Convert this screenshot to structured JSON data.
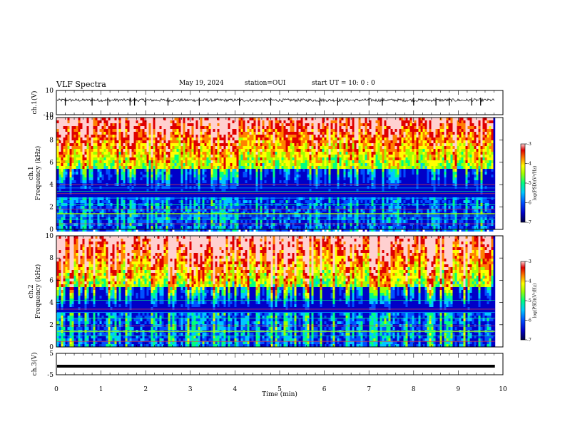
{
  "header": {
    "title": "VLF Spectra",
    "date": "May 19, 2024",
    "station": "station=OUI",
    "start_ut": "start  UT =   10: 0  : 0"
  },
  "colors": {
    "colormap": [
      "#000040",
      "#0000c8",
      "#0050ff",
      "#00c8ff",
      "#00ff80",
      "#a0ff00",
      "#ffff00",
      "#ff8000",
      "#e00000",
      "#ffd0d0"
    ],
    "waveform": "#000000",
    "frame": "#000000"
  },
  "chart_data": [
    {
      "id": "ch1-waveform",
      "type": "line",
      "ylabel": "ch.1(V)",
      "ylim": [
        -10,
        10
      ],
      "yticks": [
        "10",
        "-10"
      ],
      "xlim": [
        0,
        10
      ],
      "baseline_V": 2,
      "data_end_min": 9.82
    },
    {
      "id": "ch1-spectrogram",
      "type": "heatmap",
      "ylabel": "ch.1\nFrequency (kHz)",
      "ylim": [
        0,
        10
      ],
      "yticks": [
        "0",
        "2",
        "4",
        "6",
        "8",
        "10"
      ],
      "xlim": [
        0,
        10
      ],
      "data_end_min": 9.82,
      "colorbar": {
        "label": "log(PSD)(V²/Hz)",
        "range": [
          -7,
          -3
        ],
        "ticks": [
          "-3",
          "-4",
          "-5",
          "-6",
          "-7"
        ]
      },
      "background_lines_kHz": [
        0.5,
        0.9,
        1.2,
        1.8,
        2.2,
        2.8,
        3.2,
        3.4,
        3.7,
        4.0
      ]
    },
    {
      "id": "ch2-spectrogram",
      "type": "heatmap",
      "ylabel": "ch.2\nFrequency (kHz)",
      "ylim": [
        0,
        10
      ],
      "yticks": [
        "0",
        "2",
        "4",
        "6",
        "8",
        "10"
      ],
      "xlim": [
        0,
        10
      ],
      "data_end_min": 9.82,
      "colorbar": {
        "label": "log(PSD)(V²/Hz)",
        "range": [
          -7,
          -3
        ],
        "ticks": [
          "-3",
          "-4",
          "-5",
          "-6",
          "-7"
        ]
      },
      "background_lines_kHz": [
        0.5,
        1.0,
        1.4,
        1.9,
        2.6,
        3.1,
        3.4,
        4.2
      ]
    },
    {
      "id": "ch3-waveform",
      "type": "line",
      "ylabel": "ch.3(V)",
      "ylim": [
        -5,
        5
      ],
      "yticks": [
        "5",
        "-5"
      ],
      "xlim": [
        0,
        10
      ],
      "value_V": -1,
      "data_end_min": 9.82,
      "xlabel": "Time (min)",
      "xticks": [
        "0",
        "1",
        "2",
        "3",
        "4",
        "5",
        "6",
        "7",
        "8",
        "9",
        "10"
      ]
    }
  ]
}
